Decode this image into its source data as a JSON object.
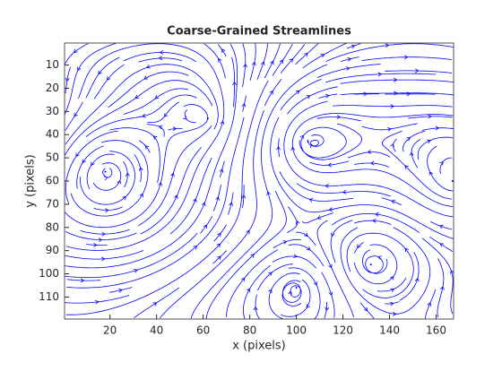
{
  "chart_data": {
    "type": "streamline",
    "title": "Coarse-Grained Streamlines",
    "x_label": "x (pixels)",
    "y_label": "y (pixels)",
    "xlim": [
      0.5,
      167.5
    ],
    "ylim": [
      0.5,
      119.5
    ],
    "y_reversed": true,
    "xticks": [
      20,
      40,
      60,
      80,
      100,
      120,
      140,
      160
    ],
    "yticks": [
      10,
      20,
      30,
      40,
      50,
      60,
      70,
      80,
      90,
      100,
      110
    ],
    "color": "#0000ff",
    "vortices": [
      {
        "x": 18,
        "y": 56,
        "spin": "ccw"
      },
      {
        "x": 105,
        "y": 43,
        "spin": "cw"
      },
      {
        "x": 62,
        "y": 33,
        "spin": "ccw"
      },
      {
        "x": 132,
        "y": 96,
        "spin": "ccw"
      },
      {
        "x": 167,
        "y": 60,
        "spin": "cw"
      },
      {
        "x": 100,
        "y": 106,
        "spin": "cw"
      }
    ]
  }
}
